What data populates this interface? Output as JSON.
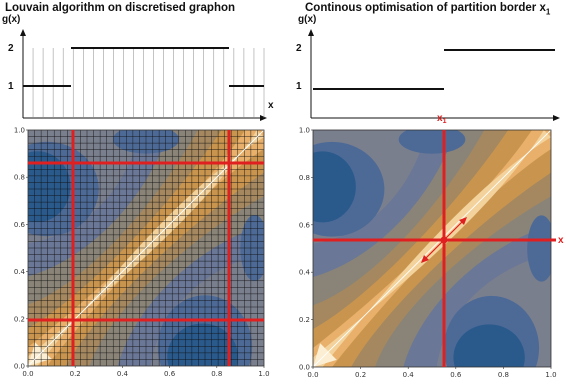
{
  "left_panel": {
    "title": "Louvain algorithm on discretised graphon",
    "step_plot": {
      "y_label": "g(x)",
      "x_label": "x",
      "y_ticks": [
        "1",
        "2"
      ]
    },
    "contour": {
      "x_ticks": [
        "0.0",
        "0.2",
        "0.4",
        "0.6",
        "0.8",
        "1.0"
      ],
      "y_ticks": [
        "0.0",
        "0.2",
        "0.4",
        "0.6",
        "0.8",
        "1.0"
      ]
    }
  },
  "right_panel": {
    "title": "Continous optimisation of partition border x",
    "title_sub": "1",
    "step_plot": {
      "y_label": "g(x)",
      "x_label": "x",
      "y_ticks": [
        "1",
        "2"
      ]
    },
    "contour": {
      "x_ticks": [
        "0.0",
        "0.2",
        "0.4",
        "0.6",
        "0.8",
        "1.0"
      ],
      "y_ticks": [
        "0.0",
        "0.2",
        "0.4",
        "0.6",
        "0.8",
        "1.0"
      ],
      "border_label_top": "x",
      "border_label_top_sub": "1",
      "border_label_right": "x"
    }
  },
  "colors": {
    "contour_levels": [
      "#2a5a8c",
      "#4d6a97",
      "#6a7796",
      "#8a8478",
      "#a5885f",
      "#c9954e",
      "#e8b06a",
      "#f3d29c",
      "#fbeed2"
    ],
    "partition_lines": "#e02020"
  }
}
